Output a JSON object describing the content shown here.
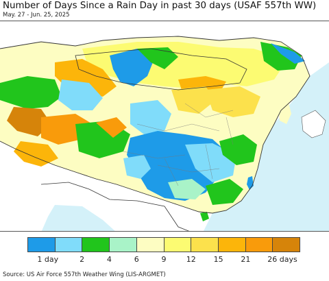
{
  "title": "Number of Days Since a Rain Day in past 30 days (USAF 557th WW)",
  "subtitle": "May. 27 - Jun. 25, 2025",
  "source": "Source: US Air Force 557th Weather Wing (LIS-ARGMET)",
  "legend": {
    "colors": [
      "#1e9be8",
      "#80dcfa",
      "#21c51c",
      "#a9f3c8",
      "#fdfdc2",
      "#fcfb72",
      "#fce14c",
      "#fcb50a",
      "#f99b0b",
      "#d6840a"
    ],
    "labels": [
      {
        "text": "1 day",
        "slot": 1
      },
      {
        "text": "2",
        "slot": 2
      },
      {
        "text": "4",
        "slot": 3
      },
      {
        "text": "6",
        "slot": 4
      },
      {
        "text": "9",
        "slot": 5
      },
      {
        "text": "12",
        "slot": 6
      },
      {
        "text": "15",
        "slot": 7
      },
      {
        "text": "21",
        "slot": 8
      },
      {
        "text": "26 days",
        "slot": 9
      }
    ]
  },
  "map_colors": {
    "ocean": "#d4f1f9",
    "outside_land": "#ffffff",
    "borders": "#555555"
  }
}
